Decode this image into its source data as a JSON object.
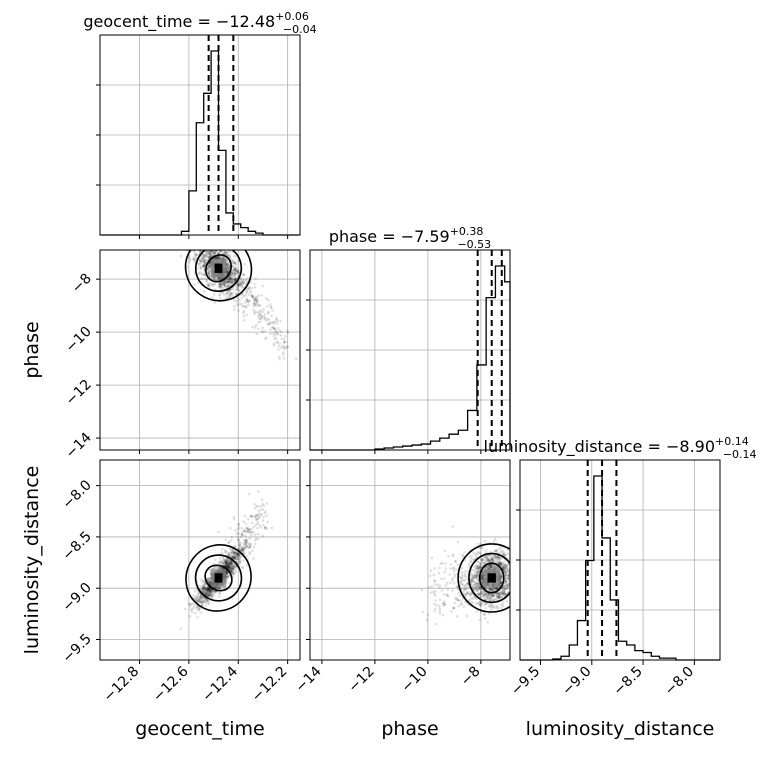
{
  "chart_data": {
    "type": "corner",
    "parameters": [
      {
        "key": "geocent_time",
        "label": "geocent_time",
        "title_name": "geocent_time",
        "title_median": "−12.48",
        "title_plus": "+0.06",
        "title_minus": "−0.04",
        "median": -12.48,
        "q_low": -12.52,
        "q_high": -12.42,
        "range": [
          -12.96,
          -12.15
        ],
        "ticks": [
          -12.8,
          -12.6,
          -12.4,
          -12.2
        ],
        "tick_labels": [
          "−12.8",
          "−12.6",
          "−12.4",
          "−12.2"
        ],
        "hist": {
          "edges": [
            -12.96,
            -12.93,
            -12.9,
            -12.87,
            -12.84,
            -12.81,
            -12.78,
            -12.75,
            -12.72,
            -12.69,
            -12.66,
            -12.63,
            -12.6,
            -12.57,
            -12.54,
            -12.51,
            -12.48,
            -12.45,
            -12.42,
            -12.39,
            -12.36,
            -12.33,
            -12.3,
            -12.27,
            -12.24,
            -12.21,
            -12.18,
            -12.15
          ],
          "counts": [
            0,
            0,
            0,
            0,
            0,
            0,
            0,
            0,
            0,
            0,
            0,
            0.02,
            0.24,
            0.61,
            0.77,
            1.0,
            0.46,
            0.12,
            0.06,
            0.04,
            0.02,
            0.01,
            0,
            0,
            0,
            0,
            0
          ]
        }
      },
      {
        "key": "phase",
        "label": "phase",
        "title_name": "phase",
        "title_median": "−7.59",
        "title_plus": "+0.38",
        "title_minus": "−0.53",
        "median": -7.59,
        "q_low": -8.12,
        "q_high": -7.21,
        "range": [
          -14.45,
          -6.9
        ],
        "ticks": [
          -14,
          -12,
          -10,
          -8
        ],
        "tick_labels": [
          "−14",
          "−12",
          "−10",
          "−8"
        ],
        "hist": {
          "edges": [
            -14.45,
            -14.1,
            -13.75,
            -13.4,
            -13.05,
            -12.7,
            -12.35,
            -12.0,
            -11.65,
            -11.3,
            -10.95,
            -10.6,
            -10.25,
            -9.9,
            -9.55,
            -9.2,
            -8.85,
            -8.5,
            -8.15,
            -7.8,
            -7.45,
            -7.1,
            -6.9
          ],
          "counts": [
            0,
            0,
            0,
            0,
            0,
            0,
            0,
            0.005,
            0.01,
            0.015,
            0.02,
            0.025,
            0.03,
            0.045,
            0.06,
            0.08,
            0.1,
            0.2,
            0.43,
            0.77,
            0.93,
            0.85
          ]
        }
      },
      {
        "key": "luminosity_distance",
        "label": "luminosity_distance",
        "title_name": "luminosity_distance",
        "title_median": "−8.90",
        "title_plus": "+0.14",
        "title_minus": "−0.14",
        "median": -8.9,
        "q_low": -9.04,
        "q_high": -8.76,
        "range": [
          -9.7,
          -7.75
        ],
        "ticks": [
          -9.5,
          -9.0,
          -8.5,
          -8.0
        ],
        "tick_labels": [
          "−9.5",
          "−9.0",
          "−8.5",
          "−8.0"
        ],
        "hist": {
          "edges": [
            -9.7,
            -9.62,
            -9.54,
            -9.46,
            -9.38,
            -9.3,
            -9.22,
            -9.14,
            -9.06,
            -8.98,
            -8.9,
            -8.82,
            -8.74,
            -8.66,
            -8.58,
            -8.5,
            -8.42,
            -8.34,
            -8.26,
            -8.18,
            -8.1,
            -8.02,
            -7.94,
            -7.86,
            -7.78,
            -7.75
          ],
          "counts": [
            0,
            0,
            0,
            0,
            0.005,
            0.02,
            0.08,
            0.21,
            0.53,
            0.98,
            0.65,
            0.32,
            0.1,
            0.08,
            0.05,
            0.04,
            0.02,
            0.01,
            0.01,
            0,
            0,
            0,
            0,
            0,
            0
          ]
        }
      }
    ],
    "pairs": [
      {
        "x": "geocent_time",
        "y": "phase",
        "row": 1,
        "col": 0,
        "center": [
          -12.48,
          -7.59
        ],
        "spread": [
          0.045,
          0.5
        ],
        "correlation": -0.55,
        "skew": "tail toward x=-12.2, y=-10.5"
      },
      {
        "x": "geocent_time",
        "y": "luminosity_distance",
        "row": 2,
        "col": 0,
        "center": [
          -12.48,
          -8.9
        ],
        "spread": [
          0.045,
          0.13
        ],
        "correlation": 0.9,
        "skew": "tail toward x=-12.35, y=-8.2"
      },
      {
        "x": "phase",
        "y": "luminosity_distance",
        "row": 2,
        "col": 1,
        "center": [
          -7.59,
          -8.9
        ],
        "spread": [
          0.45,
          0.13
        ],
        "correlation": 0.05,
        "skew": "tail toward x=-10, y=-9.2"
      }
    ],
    "grid": true,
    "quantile_lines": "dashed"
  }
}
